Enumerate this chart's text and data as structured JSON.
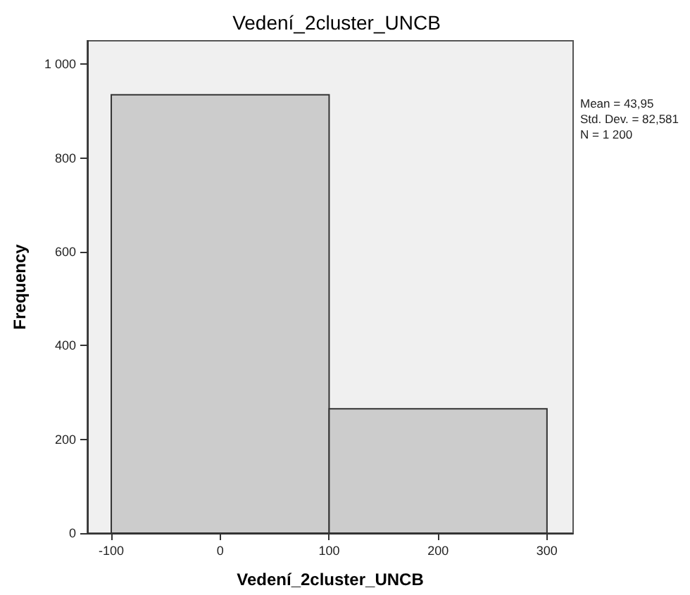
{
  "chart_data": {
    "type": "histogram",
    "title": "Vedení_2cluster_UNCB",
    "xlabel": "Vedení_2cluster_UNCB",
    "ylabel": "Frequency",
    "bins": [
      -100,
      100,
      300
    ],
    "values": [
      935,
      265
    ],
    "color": "#cccccc",
    "xlim": [
      -122,
      324
    ],
    "xticks": [
      -100,
      0,
      100,
      200,
      300
    ],
    "ylim": [
      0,
      1050
    ],
    "yticks": [
      0,
      200,
      400,
      600,
      800,
      {
        "value": 1000,
        "label": "1 000"
      }
    ],
    "annotations": [
      "Mean = 43,95",
      "Std. Dev. = 82,581",
      "N = 1 200"
    ],
    "grid": false,
    "legend": false
  }
}
